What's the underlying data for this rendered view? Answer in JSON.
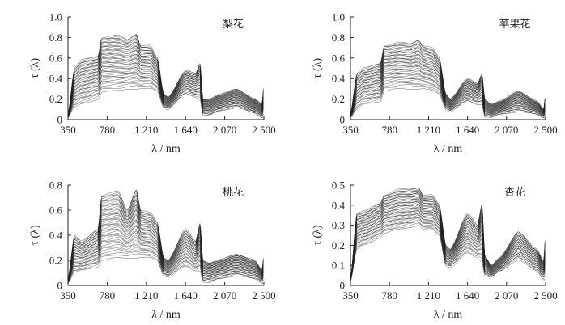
{
  "chart_data": [
    {
      "type": "line",
      "title": "梨花",
      "xlabel": "λ / nm",
      "ylabel": "τ (λ)",
      "xlim": [
        350,
        2500
      ],
      "ylim": [
        0,
        1.0
      ],
      "xticks": [
        "350",
        "780",
        "1 210",
        "1 640",
        "2 070",
        "2 500"
      ],
      "yticks": [
        "0",
        "0.2",
        "0.4",
        "0.6",
        "0.8",
        "1.0"
      ],
      "x": [
        350,
        420,
        500,
        680,
        720,
        900,
        1000,
        1100,
        1150,
        1250,
        1330,
        1400,
        1450,
        1640,
        1750,
        1800,
        1830,
        1900,
        2000,
        2200,
        2400,
        2480,
        2500
      ],
      "series": [
        {
          "values": [
            0.05,
            0.5,
            0.58,
            0.62,
            0.8,
            0.82,
            0.78,
            0.84,
            0.72,
            0.72,
            0.6,
            0.25,
            0.22,
            0.48,
            0.45,
            0.55,
            0.2,
            0.2,
            0.24,
            0.3,
            0.2,
            0.15,
            0.35
          ]
        },
        {
          "values": [
            0.02,
            0.12,
            0.15,
            0.2,
            0.27,
            0.28,
            0.3,
            0.3,
            0.3,
            0.3,
            0.28,
            0.12,
            0.1,
            0.25,
            0.22,
            0.2,
            0.05,
            0.04,
            0.08,
            0.12,
            0.06,
            0.02,
            0.02
          ]
        }
      ]
    },
    {
      "type": "line",
      "title": "苹果花",
      "xlabel": "λ / nm",
      "ylabel": "τ (λ)",
      "xlim": [
        350,
        2500
      ],
      "ylim": [
        0,
        1.0
      ],
      "xticks": [
        "350",
        "780",
        "1 210",
        "1 640",
        "2 070",
        "2 500"
      ],
      "yticks": [
        "0",
        "0.2",
        "0.4",
        "0.6",
        "0.8",
        "1.0"
      ],
      "x": [
        350,
        420,
        500,
        680,
        720,
        900,
        1000,
        1100,
        1150,
        1250,
        1330,
        1400,
        1450,
        1640,
        1750,
        1800,
        1830,
        1900,
        2000,
        2200,
        2400,
        2480,
        2500
      ],
      "series": [
        {
          "values": [
            0.05,
            0.45,
            0.5,
            0.55,
            0.72,
            0.75,
            0.74,
            0.78,
            0.72,
            0.7,
            0.6,
            0.25,
            0.2,
            0.4,
            0.35,
            0.45,
            0.2,
            0.15,
            0.18,
            0.28,
            0.18,
            0.1,
            0.25
          ]
        },
        {
          "values": [
            0.02,
            0.1,
            0.15,
            0.18,
            0.28,
            0.3,
            0.3,
            0.3,
            0.3,
            0.28,
            0.25,
            0.1,
            0.08,
            0.18,
            0.15,
            0.15,
            0.03,
            0.02,
            0.05,
            0.08,
            0.05,
            0.02,
            0.02
          ]
        }
      ]
    },
    {
      "type": "line",
      "title": "桃花",
      "xlabel": "λ / nm",
      "ylabel": "τ (λ)",
      "xlim": [
        350,
        2500
      ],
      "ylim": [
        0,
        0.8
      ],
      "xticks": [
        "350",
        "780",
        "1 210",
        "1 640",
        "2 070",
        "2 500"
      ],
      "yticks": [
        "0",
        "0.2",
        "0.4",
        "0.6",
        "0.8"
      ],
      "x": [
        350,
        420,
        500,
        680,
        720,
        900,
        1000,
        1100,
        1150,
        1250,
        1330,
        1400,
        1450,
        1640,
        1750,
        1800,
        1830,
        1900,
        2000,
        2200,
        2400,
        2480,
        2500
      ],
      "series": [
        {
          "values": [
            0.05,
            0.4,
            0.35,
            0.45,
            0.72,
            0.75,
            0.6,
            0.77,
            0.6,
            0.58,
            0.5,
            0.22,
            0.2,
            0.45,
            0.35,
            0.5,
            0.2,
            0.18,
            0.2,
            0.25,
            0.2,
            0.12,
            0.25
          ]
        },
        {
          "values": [
            0.02,
            0.1,
            0.12,
            0.15,
            0.2,
            0.22,
            0.22,
            0.22,
            0.22,
            0.22,
            0.2,
            0.08,
            0.07,
            0.15,
            0.12,
            0.12,
            0.03,
            0.02,
            0.05,
            0.08,
            0.05,
            0.02,
            0.02
          ]
        }
      ]
    },
    {
      "type": "line",
      "title": "杏花",
      "xlabel": "λ / nm",
      "ylabel": "τ (λ)",
      "xlim": [
        350,
        2500
      ],
      "ylim": [
        0,
        0.5
      ],
      "xticks": [
        "350",
        "780",
        "1 210",
        "1 640",
        "2 070",
        "2 500"
      ],
      "yticks": [
        "0",
        "0.1",
        "0.2",
        "0.3",
        "0.4",
        "0.5"
      ],
      "x": [
        350,
        420,
        500,
        680,
        720,
        900,
        1000,
        1100,
        1150,
        1250,
        1330,
        1400,
        1450,
        1640,
        1750,
        1800,
        1830,
        1900,
        2000,
        2200,
        2400,
        2480,
        2500
      ],
      "series": [
        {
          "values": [
            0.03,
            0.36,
            0.37,
            0.41,
            0.45,
            0.48,
            0.48,
            0.49,
            0.45,
            0.45,
            0.4,
            0.2,
            0.18,
            0.36,
            0.3,
            0.41,
            0.15,
            0.1,
            0.14,
            0.27,
            0.18,
            0.12,
            0.26
          ]
        },
        {
          "values": [
            0.02,
            0.18,
            0.2,
            0.24,
            0.26,
            0.28,
            0.29,
            0.3,
            0.28,
            0.28,
            0.25,
            0.1,
            0.09,
            0.16,
            0.14,
            0.12,
            0.05,
            0.04,
            0.07,
            0.13,
            0.07,
            0.03,
            0.02
          ]
        }
      ]
    }
  ]
}
